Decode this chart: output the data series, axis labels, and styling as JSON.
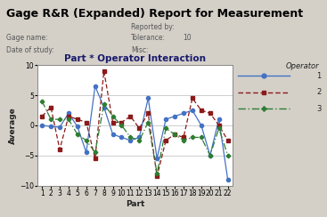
{
  "title": "Gage R&R (Expanded) Report for Measurement",
  "subtitle": "Part * Operator Interaction",
  "header_left_labels": [
    "Gage name:",
    "Date of study:"
  ],
  "header_right_labels": [
    "Reported by:",
    "Tolerance:",
    "Misc:"
  ],
  "header_right_values": [
    "",
    "10",
    ""
  ],
  "xlabel": "Part",
  "ylabel": "Average",
  "xlim": [
    0.5,
    22.5
  ],
  "ylim": [
    -10,
    10
  ],
  "yticks": [
    -10,
    -5,
    0,
    5,
    10
  ],
  "xticks": [
    1,
    2,
    3,
    4,
    5,
    6,
    7,
    8,
    9,
    10,
    11,
    12,
    13,
    14,
    15,
    16,
    17,
    18,
    19,
    20,
    21,
    22
  ],
  "bg_color": "#d4d0c8",
  "plot_bg": "#ffffff",
  "operator1": [
    0.0,
    -0.2,
    -0.3,
    2.0,
    -0.2,
    -4.5,
    6.5,
    3.0,
    -1.5,
    -2.0,
    -2.5,
    -2.0,
    4.5,
    -5.5,
    1.0,
    1.5,
    2.0,
    2.5,
    0.0,
    -5.0,
    1.0,
    -9.0
  ],
  "operator2": [
    1.5,
    3.0,
    -4.0,
    1.5,
    1.0,
    0.5,
    -5.5,
    9.0,
    0.5,
    0.5,
    1.5,
    -0.5,
    2.0,
    -8.5,
    -2.5,
    -1.5,
    -2.0,
    4.5,
    2.5,
    2.0,
    0.0,
    -2.5
  ],
  "operator3": [
    4.0,
    1.0,
    1.0,
    1.0,
    -1.5,
    -2.5,
    -4.5,
    3.5,
    1.5,
    0.0,
    -2.0,
    -2.5,
    0.5,
    -8.0,
    -0.5,
    -1.5,
    -2.5,
    -2.0,
    -2.0,
    -5.0,
    -0.5,
    -5.0
  ],
  "color1": "#4472c4",
  "color2": "#8b1a1a",
  "color3": "#2e7d32",
  "legend_title": "Operator",
  "legend_labels": [
    "1",
    "2",
    "3"
  ],
  "title_fontsize": 9,
  "title_color": "#000000",
  "header_fontsize": 5.5,
  "axis_label_fontsize": 6.5,
  "tick_fontsize": 5.5,
  "subtitle_fontsize": 7.5,
  "subtitle_color": "#1a1a6e"
}
